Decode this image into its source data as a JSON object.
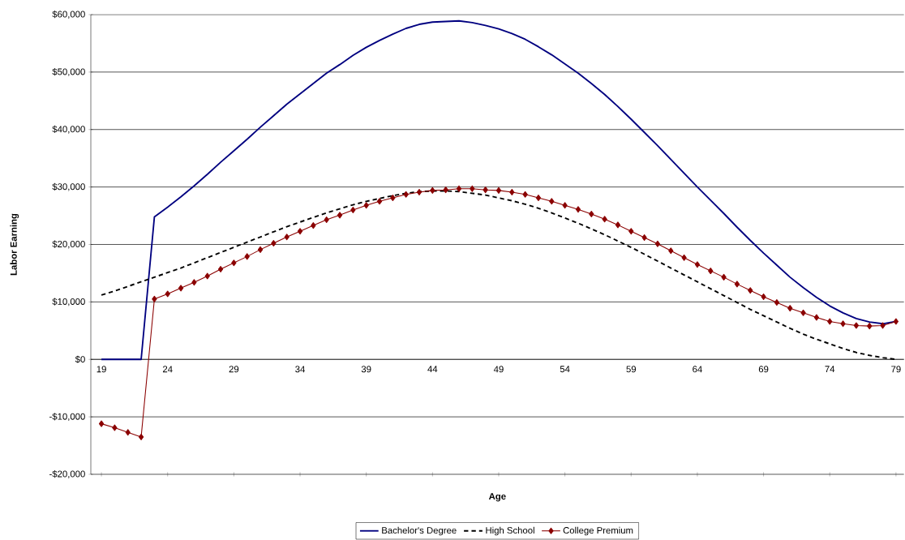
{
  "chart_data": {
    "type": "line",
    "xlabel": "Age",
    "ylabel": "Labor Earning",
    "x": [
      19,
      20,
      21,
      22,
      23,
      24,
      25,
      26,
      27,
      28,
      29,
      30,
      31,
      32,
      33,
      34,
      35,
      36,
      37,
      38,
      39,
      40,
      41,
      42,
      43,
      44,
      45,
      46,
      47,
      48,
      49,
      50,
      51,
      52,
      53,
      54,
      55,
      56,
      57,
      58,
      59,
      60,
      61,
      62,
      63,
      64,
      65,
      66,
      67,
      68,
      69,
      70,
      71,
      72,
      73,
      74,
      75,
      76,
      77,
      78,
      79
    ],
    "series": [
      {
        "name": "Bachelor's Degree",
        "color": "#000080",
        "line_style": "solid",
        "marker": "none",
        "values": [
          0,
          0,
          0,
          0,
          24800,
          26500,
          28300,
          30200,
          32200,
          34300,
          36300,
          38300,
          40400,
          42400,
          44400,
          46200,
          48000,
          49800,
          51300,
          52900,
          54300,
          55500,
          56600,
          57600,
          58300,
          58700,
          58800,
          58900,
          58600,
          58100,
          57500,
          56700,
          55700,
          54400,
          53000,
          51400,
          49800,
          48000,
          46100,
          44000,
          41800,
          39500,
          37200,
          34800,
          32400,
          30000,
          27700,
          25400,
          23000,
          20700,
          18500,
          16400,
          14300,
          12500,
          10800,
          9300,
          8100,
          7100,
          6500,
          6200,
          6600
        ]
      },
      {
        "name": "High School",
        "color": "#000000",
        "line_style": "dashed",
        "marker": "none",
        "values": [
          11200,
          11900,
          12700,
          13500,
          14300,
          15100,
          15900,
          16800,
          17700,
          18600,
          19500,
          20400,
          21300,
          22200,
          23100,
          23900,
          24700,
          25500,
          26200,
          26900,
          27500,
          28000,
          28500,
          28900,
          29200,
          29300,
          29300,
          29200,
          28900,
          28600,
          28100,
          27600,
          27000,
          26300,
          25500,
          24600,
          23700,
          22700,
          21700,
          20600,
          19500,
          18300,
          17100,
          15900,
          14700,
          13500,
          12300,
          11100,
          9900,
          8700,
          7600,
          6500,
          5400,
          4400,
          3500,
          2700,
          1900,
          1200,
          700,
          300,
          0
        ]
      },
      {
        "name": "College Premium",
        "color": "#8b0000",
        "line_style": "solid",
        "marker": "diamond",
        "values": [
          -11200,
          -11900,
          -12700,
          -13500,
          10500,
          11400,
          12400,
          13400,
          14500,
          15700,
          16800,
          17900,
          19100,
          20200,
          21300,
          22300,
          23300,
          24300,
          25100,
          26000,
          26800,
          27500,
          28100,
          28700,
          29100,
          29400,
          29500,
          29700,
          29700,
          29500,
          29400,
          29100,
          28700,
          28100,
          27500,
          26800,
          26100,
          25300,
          24400,
          23400,
          22300,
          21200,
          20100,
          18900,
          17700,
          16500,
          15400,
          14300,
          13100,
          12000,
          10900,
          9900,
          8900,
          8100,
          7300,
          6600,
          6200,
          5900,
          5800,
          5900,
          6600
        ]
      }
    ],
    "xlim": [
      18.2,
      79.6
    ],
    "xticks": [
      19,
      24,
      29,
      34,
      39,
      44,
      49,
      54,
      59,
      64,
      69,
      74,
      79
    ],
    "ylim": [
      -20000,
      60000
    ],
    "yticks": [
      {
        "value": -20000,
        "label": "-$20,000"
      },
      {
        "value": -10000,
        "label": "-$10,000"
      },
      {
        "value": 0,
        "label": "$0"
      },
      {
        "value": 10000,
        "label": "$10,000"
      },
      {
        "value": 20000,
        "label": "$20,000"
      },
      {
        "value": 30000,
        "label": "$30,000"
      },
      {
        "value": 40000,
        "label": "$40,000"
      },
      {
        "value": 50000,
        "label": "$50,000"
      },
      {
        "value": 60000,
        "label": "$60,000"
      }
    ],
    "grid": "y",
    "legend": "bottom"
  }
}
